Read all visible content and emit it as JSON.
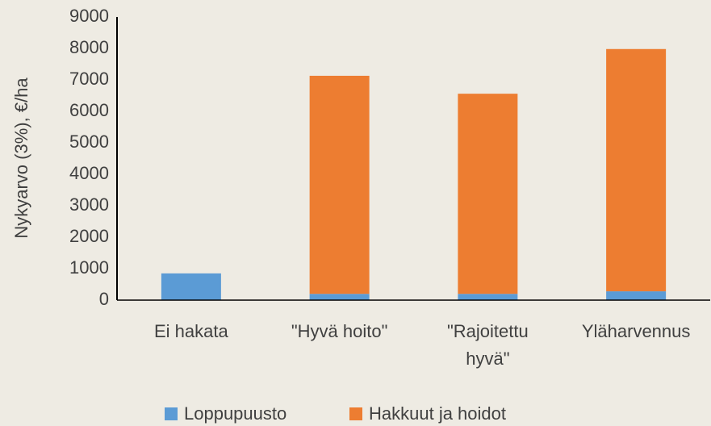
{
  "chart_data": {
    "type": "stacked_bar",
    "y_label": "Nykyarvo (3%), €/ha",
    "categories": [
      "Ei hakata",
      "\"Hyvä hoito\"",
      "\"Rajoitettu hyvä\"",
      "Yläharvennus"
    ],
    "series": [
      {
        "name": "Loppupuusto",
        "color": "#5b9bd5",
        "values": [
          850,
          200,
          200,
          280
        ]
      },
      {
        "name": "Hakkuut ja hoidot",
        "color": "#ed7d31",
        "values": [
          0,
          6930,
          6360,
          7700
        ]
      }
    ],
    "ylim": [
      0,
      9000
    ],
    "yticks": [
      0,
      1000,
      2000,
      3000,
      4000,
      5000,
      6000,
      7000,
      8000,
      9000
    ],
    "grid": false,
    "legend": "bottom"
  }
}
